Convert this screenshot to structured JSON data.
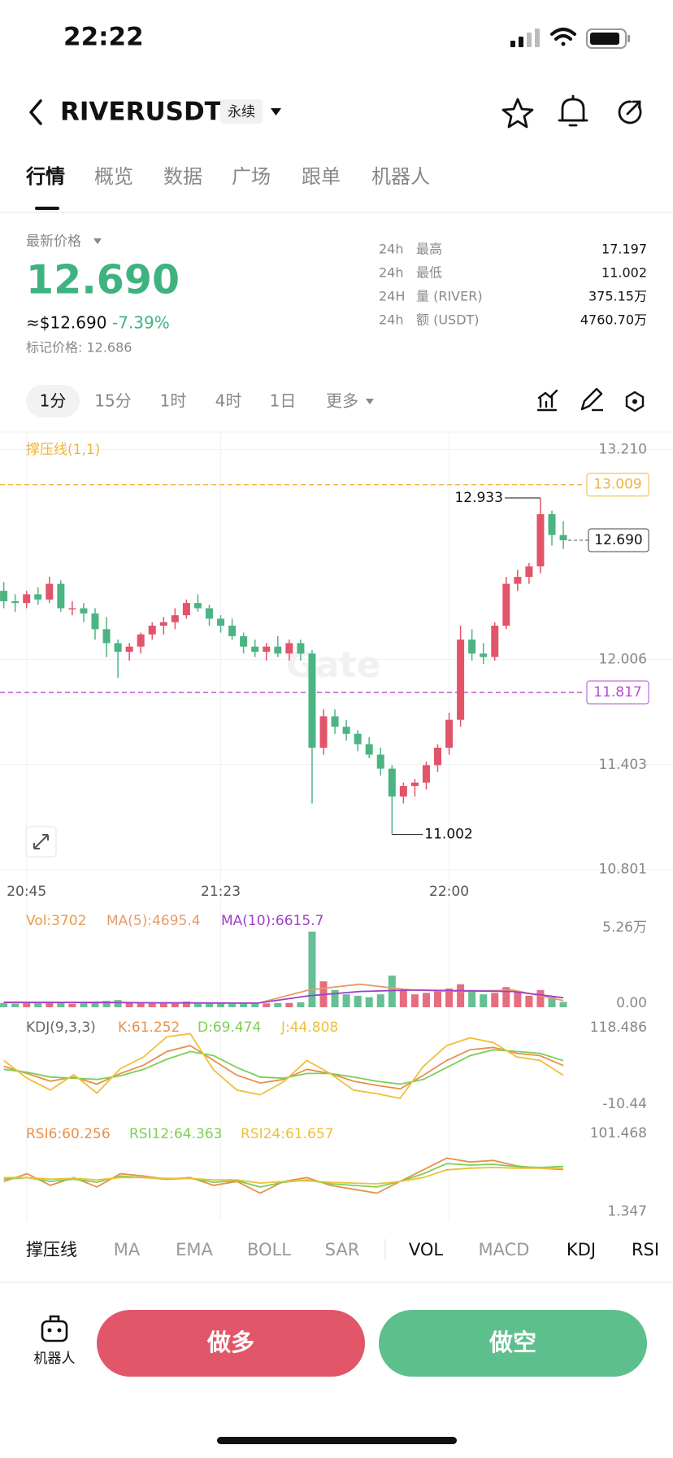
{
  "status_bar": {
    "time": "22:22"
  },
  "header": {
    "symbol": "RIVERUSDT",
    "contract": "永续"
  },
  "tabs": [
    "行情",
    "概览",
    "数据",
    "广场",
    "跟单",
    "机器人"
  ],
  "price_panel": {
    "label": "最新价格",
    "last_price": "12.690",
    "usd_price": "≈$12.690",
    "change": "-7.39%",
    "mark_price": "标记价格: 12.686",
    "stats": [
      {
        "period": "24h",
        "name": "最高",
        "value": "17.197"
      },
      {
        "period": "24h",
        "name": "最低",
        "value": "11.002"
      },
      {
        "period": "24H",
        "name": "量 (RIVER)",
        "value": "375.15万"
      },
      {
        "period": "24h",
        "name": "额 (USDT)",
        "value": "4760.70万"
      }
    ]
  },
  "intervals": [
    "1分",
    "15分",
    "1时",
    "4时",
    "1日",
    "更多"
  ],
  "chart_data": [
    {
      "type": "candlestick",
      "title": "撑压线(1,1)",
      "watermark": "Gate",
      "categories": [
        null,
        null,
        "20:45",
        null,
        null,
        null,
        null,
        null,
        null,
        null,
        null,
        null,
        null,
        null,
        null,
        null,
        null,
        null,
        null,
        "21:23",
        null,
        null,
        null,
        null,
        null,
        null,
        null,
        null,
        null,
        null,
        null,
        null,
        null,
        null,
        null,
        null,
        null,
        null,
        null,
        "22:00",
        null,
        null,
        null,
        null,
        null,
        null,
        null,
        null,
        null,
        null
      ],
      "open": [
        12.4,
        12.34,
        12.33,
        12.38,
        12.35,
        12.44,
        12.3,
        12.3,
        12.27,
        12.18,
        12.1,
        12.05,
        12.08,
        12.15,
        12.2,
        12.22,
        12.26,
        12.33,
        12.3,
        12.24,
        12.2,
        12.14,
        12.08,
        12.05,
        12.08,
        12.04,
        12.1,
        12.04,
        11.5,
        11.68,
        11.62,
        11.58,
        11.52,
        11.46,
        11.38,
        11.22,
        11.28,
        11.3,
        11.4,
        11.5,
        11.66,
        12.12,
        12.04,
        12.02,
        12.2,
        12.44,
        12.48,
        12.54,
        12.84,
        12.72
      ],
      "high": [
        12.45,
        12.38,
        12.4,
        12.42,
        12.48,
        12.46,
        12.34,
        12.33,
        12.3,
        12.25,
        12.12,
        12.1,
        12.16,
        12.22,
        12.25,
        12.3,
        12.35,
        12.38,
        12.32,
        12.26,
        12.24,
        12.16,
        12.12,
        12.1,
        12.14,
        12.12,
        12.12,
        12.06,
        11.72,
        11.72,
        11.66,
        11.6,
        11.56,
        11.5,
        11.4,
        11.3,
        11.32,
        11.42,
        11.52,
        11.7,
        12.2,
        12.18,
        12.1,
        12.22,
        12.48,
        12.52,
        12.56,
        12.933,
        12.86,
        12.8
      ],
      "low": [
        12.3,
        12.28,
        12.3,
        12.32,
        12.33,
        12.28,
        12.26,
        12.22,
        12.12,
        12.02,
        11.9,
        12.0,
        12.04,
        12.12,
        12.15,
        12.18,
        12.24,
        12.28,
        12.2,
        12.16,
        12.12,
        12.04,
        12.02,
        12.0,
        12.02,
        12.0,
        12.0,
        11.18,
        11.46,
        11.58,
        11.54,
        11.48,
        11.44,
        11.34,
        11.002,
        11.18,
        11.22,
        11.26,
        11.36,
        11.46,
        11.62,
        12.0,
        11.98,
        12.0,
        12.18,
        12.4,
        12.44,
        12.5,
        12.66,
        12.64
      ],
      "close": [
        12.34,
        12.33,
        12.38,
        12.35,
        12.44,
        12.3,
        12.3,
        12.27,
        12.18,
        12.1,
        12.05,
        12.08,
        12.15,
        12.2,
        12.22,
        12.26,
        12.33,
        12.3,
        12.24,
        12.2,
        12.14,
        12.08,
        12.05,
        12.08,
        12.04,
        12.1,
        12.04,
        11.5,
        11.68,
        11.62,
        11.58,
        11.52,
        11.46,
        11.38,
        11.22,
        11.28,
        11.3,
        11.4,
        11.5,
        11.66,
        12.12,
        12.04,
        12.02,
        12.2,
        12.44,
        12.48,
        12.54,
        12.84,
        12.72,
        12.69
      ],
      "up_color": "#e25469",
      "down_color": "#4cb482",
      "ylim": [
        10.753,
        13.311
      ],
      "yticks": [
        {
          "value": 13.21,
          "label": "13.210"
        },
        12.006,
        11.403,
        10.801
      ],
      "grid": true,
      "levels": [
        {
          "value": 13.009,
          "color": "#f0b43c"
        },
        {
          "value": 11.817,
          "color": "#b04fd0"
        }
      ],
      "price_tag": {
        "value": 12.69,
        "label": "12.690"
      }
    },
    {
      "type": "bar",
      "series": [
        {
          "name": "Vol:3702",
          "color": "#e89a4a",
          "values": [
            3000,
            2500,
            3500,
            2800,
            4000,
            3000,
            2500,
            2800,
            3500,
            4500,
            5000,
            3000,
            2800,
            3000,
            2600,
            3200,
            4000,
            2800,
            3000,
            2600,
            2800,
            3000,
            2600,
            2700,
            2900,
            3000,
            3500,
            52600,
            18000,
            12000,
            9000,
            8000,
            7000,
            9000,
            22000,
            12000,
            9000,
            10000,
            11000,
            13000,
            16000,
            12000,
            9000,
            10000,
            14000,
            11000,
            8000,
            12000,
            7000,
            3702
          ]
        }
      ],
      "lines": [
        {
          "name": "MA(5):4695.4",
          "color": "#e89a6a",
          "values": [
            3200,
            3300,
            3500,
            3000,
            2900,
            2800,
            12000,
            16000,
            12000,
            11000,
            12000,
            4695.4
          ]
        },
        {
          "name": "MA(10):6615.7",
          "color": "#a03fc8",
          "values": [
            3500,
            3400,
            3300,
            3100,
            3000,
            2900,
            8000,
            11000,
            12000,
            11500,
            11000,
            6615.7
          ]
        }
      ],
      "ylim": [
        0,
        52600
      ],
      "yticks": [
        {
          "value": 52600,
          "label": "5.26万"
        },
        {
          "value": 0,
          "label": "0.00"
        }
      ]
    },
    {
      "type": "line",
      "title": "KDJ(9,3,3)",
      "series": [
        {
          "name": "K:61.252",
          "color": "#e8904a",
          "values": [
            60,
            48,
            35,
            42,
            30,
            48,
            62,
            85,
            95,
            70,
            45,
            32,
            38,
            55,
            48,
            35,
            28,
            22,
            45,
            70,
            88,
            92,
            82,
            78,
            61.252
          ]
        },
        {
          "name": "D:69.474",
          "color": "#7ccf55",
          "values": [
            55,
            50,
            42,
            40,
            38,
            44,
            55,
            72,
            85,
            78,
            58,
            42,
            40,
            48,
            48,
            42,
            35,
            30,
            38,
            58,
            78,
            88,
            85,
            82,
            69.474
          ]
        },
        {
          "name": "J:44.808",
          "color": "#efbf3a",
          "values": [
            70,
            40,
            20,
            46,
            15,
            56,
            76,
            110,
            115,
            54,
            20,
            12,
            34,
            70,
            48,
            20,
            14,
            6,
            60,
            95,
            108,
            100,
            76,
            70,
            44.808
          ]
        }
      ],
      "ylim": [
        -10.44,
        118.486
      ],
      "yticks": [
        118.486,
        -10.44
      ]
    },
    {
      "type": "line",
      "series": [
        {
          "name": "RSI6:60.256",
          "color": "#e8904a",
          "values": [
            45,
            55,
            40,
            50,
            38,
            55,
            52,
            48,
            50,
            40,
            45,
            30,
            45,
            50,
            40,
            35,
            30,
            45,
            60,
            75,
            70,
            72,
            65,
            62,
            60.256
          ]
        },
        {
          "name": "RSI12:64.363",
          "color": "#7ccf55",
          "values": [
            48,
            50,
            45,
            48,
            44,
            52,
            50,
            48,
            49,
            44,
            46,
            38,
            44,
            47,
            42,
            40,
            38,
            45,
            55,
            68,
            66,
            67,
            64,
            63,
            64.363
          ]
        },
        {
          "name": "RSI24:61.657",
          "color": "#efbf3a",
          "values": [
            50,
            50,
            48,
            49,
            47,
            50,
            50,
            49,
            49,
            47,
            47,
            43,
            45,
            46,
            44,
            43,
            42,
            45,
            50,
            60,
            62,
            63,
            62,
            62,
            61.657
          ]
        }
      ],
      "ylim": [
        1.347,
        101.468
      ],
      "yticks": [
        101.468,
        1.347
      ]
    }
  ],
  "indicator_tabs": [
    {
      "label": "撑压线",
      "active": true
    },
    {
      "label": "MA",
      "active": false
    },
    {
      "label": "EMA",
      "active": false
    },
    {
      "label": "BOLL",
      "active": false
    },
    {
      "label": "SAR",
      "active": false
    },
    {
      "label": "VOL",
      "active": true
    },
    {
      "label": "MACD",
      "active": false
    },
    {
      "label": "KDJ",
      "active": true
    },
    {
      "label": "RSI",
      "active": true
    }
  ],
  "actions": {
    "robot": "机器人",
    "long": "做多",
    "short": "做空"
  }
}
